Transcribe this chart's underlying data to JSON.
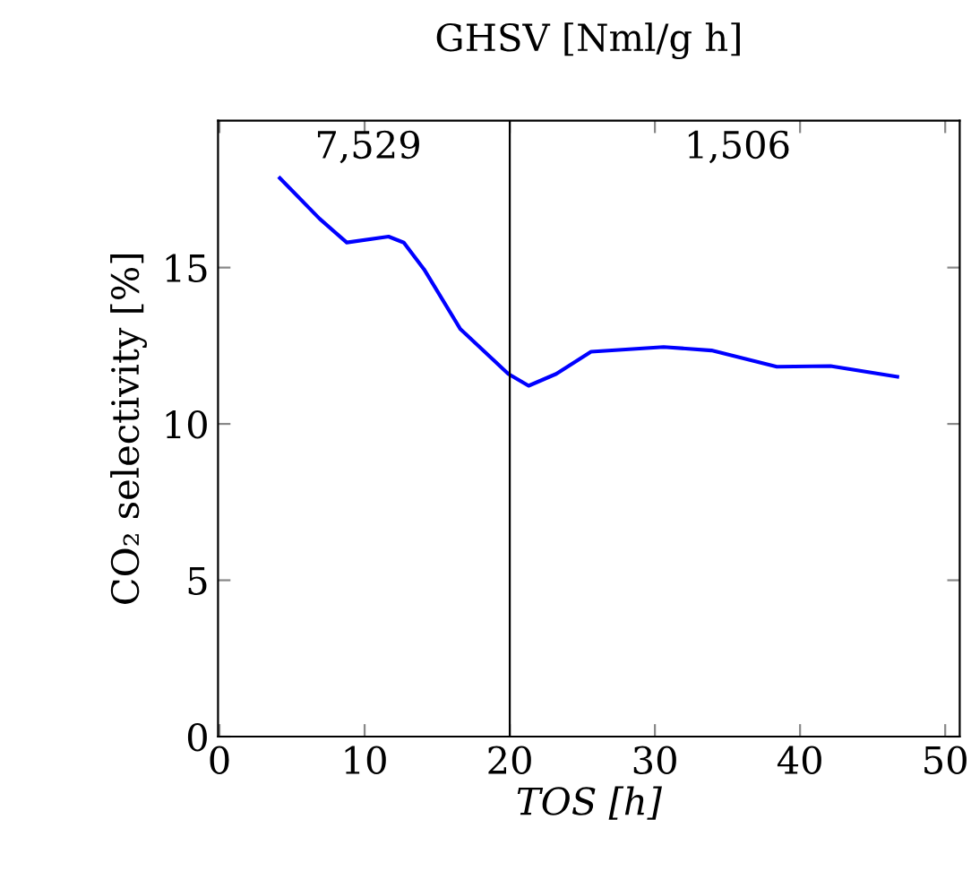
{
  "chart_data": {
    "type": "line",
    "title": "GHSV [Nml/g h]",
    "xlabel": "TOS [h]",
    "ylabel": "CO₂ selectivity [%]",
    "x": [
      4.16,
      6.9,
      8.77,
      11.65,
      12.7,
      14.1,
      16.6,
      19.9,
      21.3,
      23.2,
      25.6,
      30.6,
      33.9,
      38.4,
      42.1,
      46.7
    ],
    "series": [
      {
        "color": "#0000ff",
        "values": [
          17.86,
          16.56,
          15.8,
          15.99,
          15.8,
          14.94,
          13.03,
          11.6,
          11.22,
          11.6,
          12.31,
          12.46,
          12.35,
          11.83,
          11.85,
          11.51
        ]
      }
    ],
    "xlim": [
      -0.1,
      51
    ],
    "ylim": [
      0,
      19.7
    ],
    "xticks": [
      0,
      10,
      20,
      30,
      40,
      50
    ],
    "yticks": [
      0,
      5,
      10,
      15
    ],
    "ref_lines": [
      {
        "axis": "x",
        "value": 20,
        "color": "#000000"
      }
    ],
    "annotations": [
      "7,529",
      "1,506"
    ],
    "grid": false,
    "legend": false,
    "marker": "none",
    "line_style": "solid"
  }
}
